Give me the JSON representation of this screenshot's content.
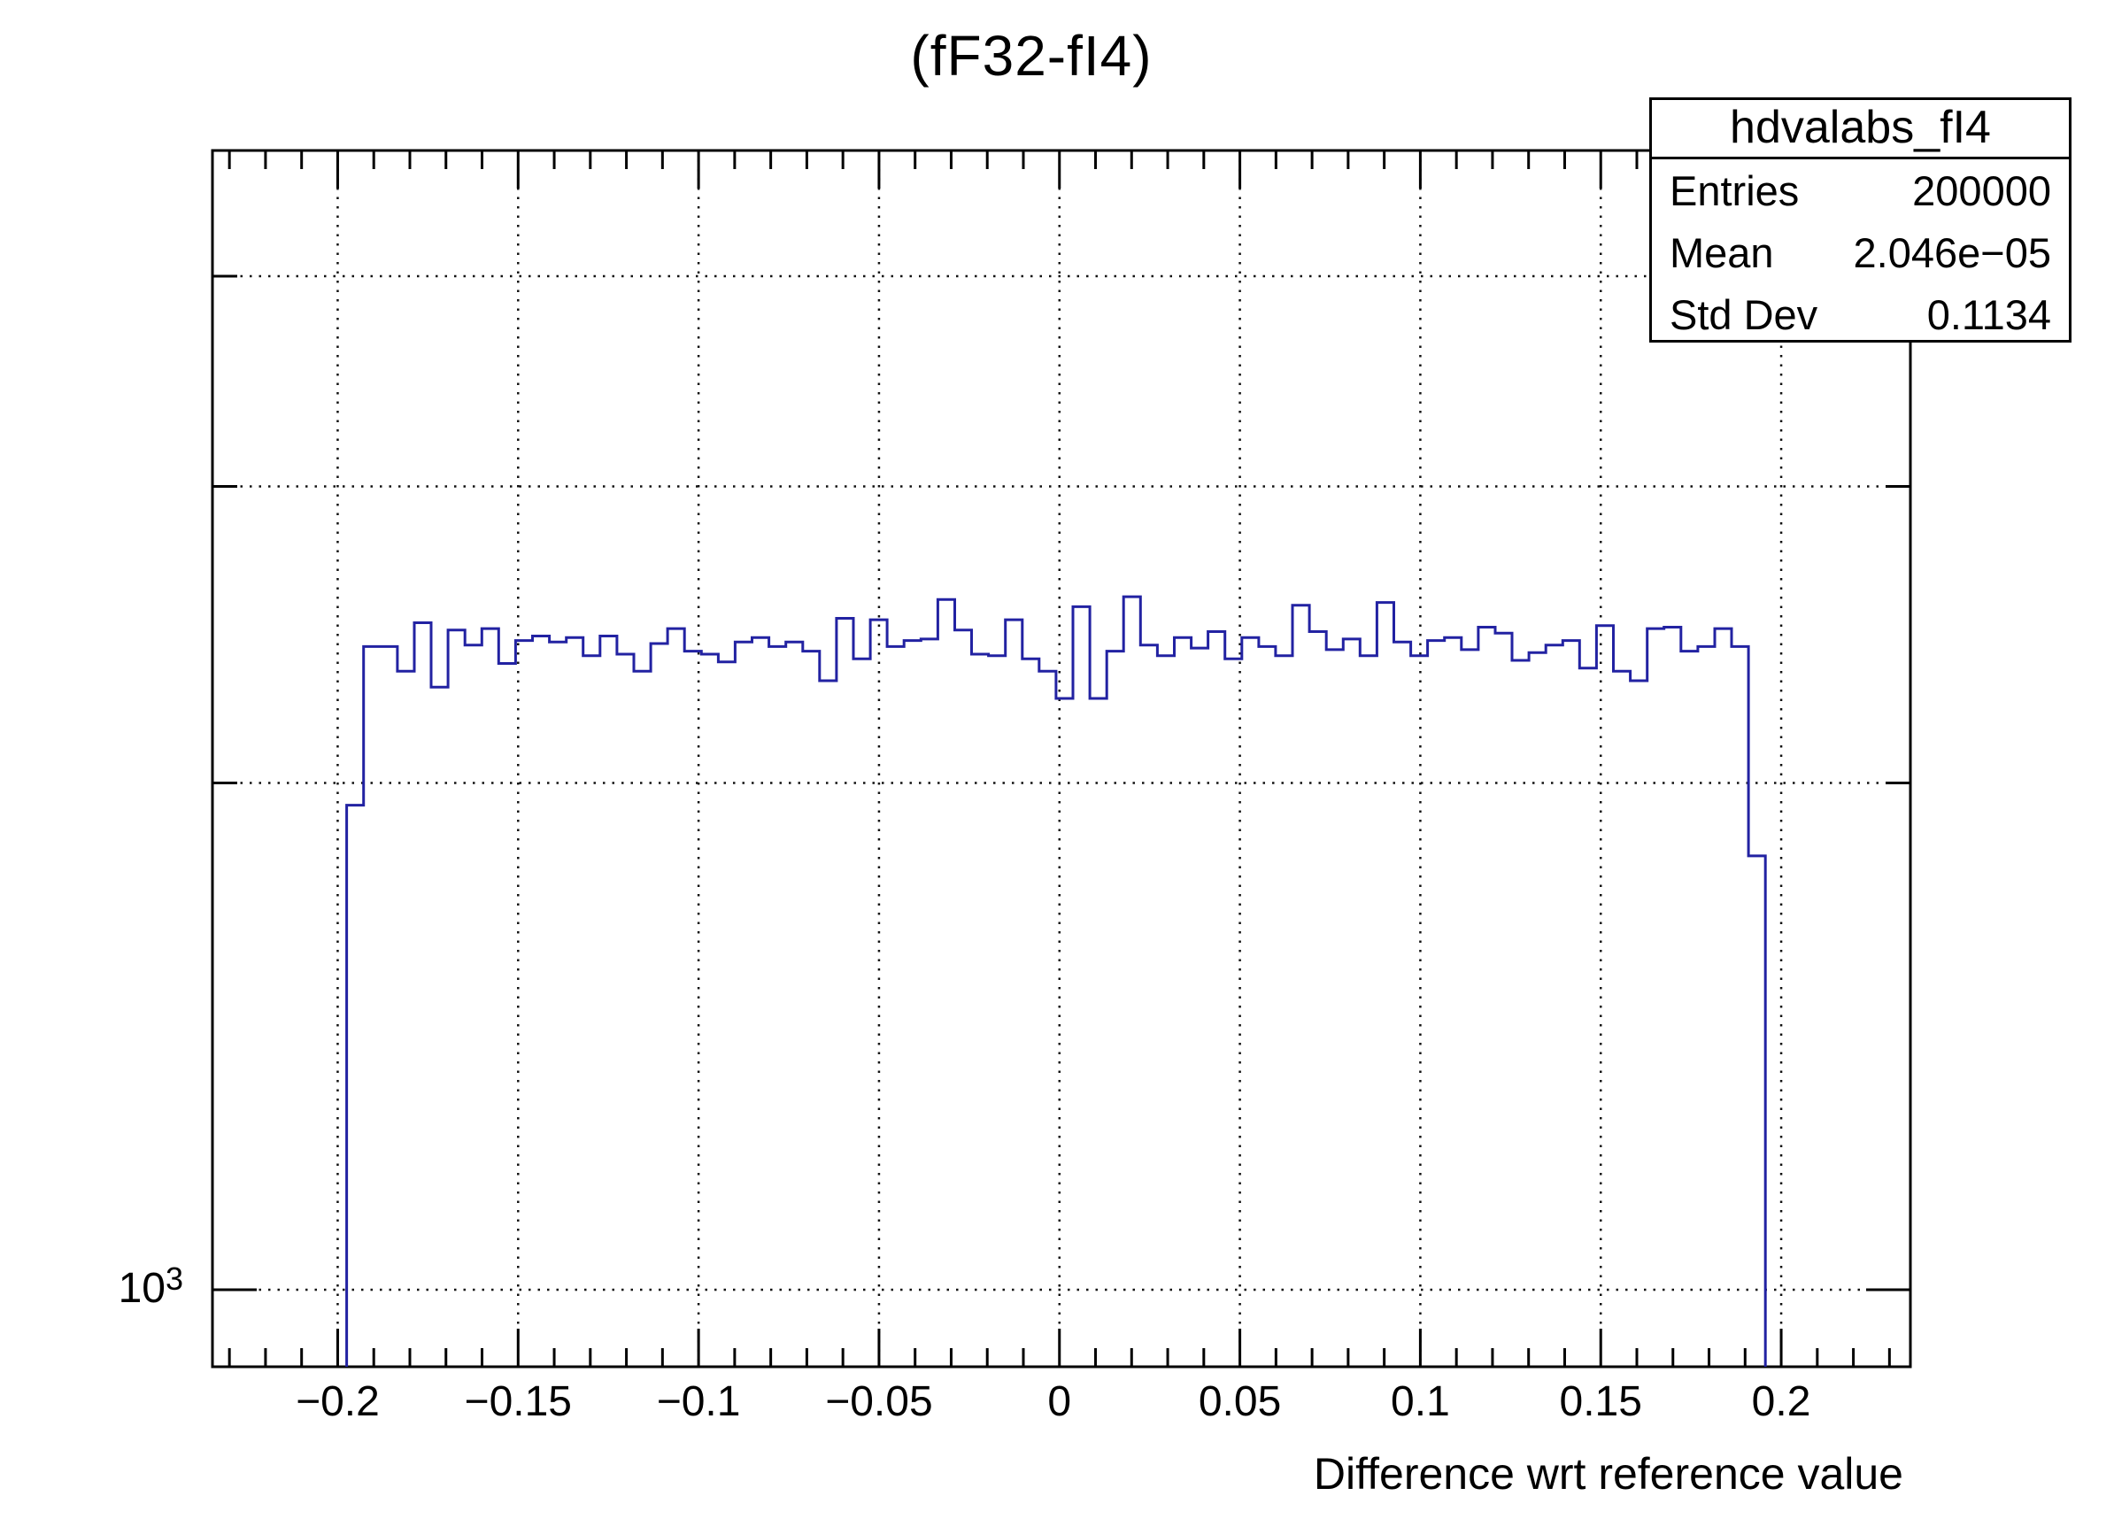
{
  "title": "(fF32-fI4)",
  "stats_box": {
    "name": "hdvalabs_fI4",
    "rows": [
      {
        "label": "Entries",
        "value": "200000"
      },
      {
        "label": "Mean",
        "value": "2.046e−05"
      },
      {
        "label": "Std Dev",
        "value": "0.1134"
      }
    ]
  },
  "colors": {
    "hist_line": "#2222a2",
    "grid": "#111111",
    "frame": "#000000",
    "background": "#ffffff"
  },
  "chart_data": {
    "type": "bar",
    "subtype": "histogram-step-log-y",
    "title": "(fF32-fI4)",
    "xlabel": "Difference wrt reference value",
    "ylabel": "",
    "legend": "none",
    "grid": true,
    "axes": {
      "xlim": [
        -0.2347,
        0.2358
      ],
      "ylim": [
        900,
        4750
      ],
      "ylog": true,
      "x_major_ticks": [
        -0.2,
        -0.15,
        -0.1,
        -0.05,
        0,
        0.05,
        0.1,
        0.15,
        0.2
      ],
      "x_major_labels": [
        "−0.2",
        "−0.15",
        "−0.1",
        "−0.05",
        "0",
        "0.05",
        "0.1",
        "0.15",
        "0.2"
      ],
      "x_minor_step": 0.01,
      "y_major_ticks": [
        1000
      ],
      "y_major_label": {
        "base": "10",
        "exp": "3"
      },
      "y_minor_ticks": [
        2000,
        3000,
        4000
      ],
      "y_grid_values": [
        1000,
        2000,
        3000,
        4000
      ]
    },
    "bins": {
      "start": -0.1975,
      "width": 0.00468,
      "counts": [
        1940,
        2410,
        2410,
        2330,
        2490,
        2280,
        2465,
        2415,
        2470,
        2355,
        2430,
        2445,
        2425,
        2440,
        2380,
        2445,
        2385,
        2330,
        2420,
        2470,
        2395,
        2385,
        2360,
        2425,
        2440,
        2410,
        2425,
        2395,
        2300,
        2505,
        2370,
        2500,
        2410,
        2430,
        2435,
        2570,
        2465,
        2385,
        2380,
        2500,
        2370,
        2330,
        2245,
        2545,
        2245,
        2395,
        2580,
        2415,
        2380,
        2440,
        2405,
        2460,
        2370,
        2440,
        2410,
        2380,
        2550,
        2460,
        2400,
        2435,
        2380,
        2560,
        2425,
        2380,
        2430,
        2440,
        2400,
        2475,
        2455,
        2365,
        2390,
        2415,
        2430,
        2340,
        2480,
        2330,
        2300,
        2470,
        2475,
        2395,
        2410,
        2470,
        2410,
        1810
      ]
    }
  }
}
